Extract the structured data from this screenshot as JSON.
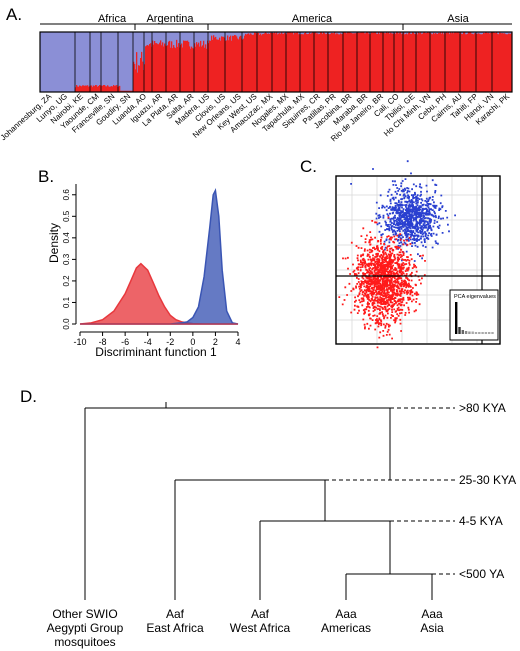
{
  "panels": {
    "A": {
      "label": "A.",
      "regions": [
        "Africa",
        "Argentina",
        "America",
        "Asia"
      ],
      "populations": [
        "Johannesburg, ZA",
        "Lunyo, UG",
        "Nairobi, KE",
        "Yaounde, CM",
        "Franceville, SN",
        "Goudiry, SN",
        "Luanda, AO",
        "Iguazu, AR",
        "La Plata, AR",
        "Salta, AR",
        "Madera, US",
        "Clovis, US",
        "New Orleans, US",
        "Key West, US",
        "Amacuzac, MX",
        "Nogales, MX",
        "Tapachula, MX",
        "Siquirres, CR",
        "Patillas, PR",
        "Jacobina, BR",
        "Maraba, BR",
        "Rio de Janeiro, BR",
        "Cali, CO",
        "Tbilisi, GE",
        "Ho Chi Minh, VN",
        "Cebu, PH",
        "Cairns, AU",
        "Tahiti, FP",
        "Hanoi, VN",
        "Karachi, PK"
      ],
      "colors": {
        "cluster_1": "#8b8fd6",
        "cluster_2": "#ee2222"
      }
    },
    "B": {
      "label": "B.",
      "colors": {
        "red": "#e8383d",
        "blue": "#3a55b4"
      }
    },
    "C": {
      "label": "C.",
      "inset_label": "PCA eigenvalues",
      "colors": {
        "red": "#ff1a1a",
        "blue": "#2a40d0"
      }
    },
    "D": {
      "label": "D.",
      "times": [
        ">80 KYA",
        "25-30 KYA",
        "4-5 KYA",
        "<500 YA"
      ],
      "taxa": [
        {
          "line1": "Other SWIO",
          "line2": "Aegypti Group",
          "line3": "mosquitoes"
        },
        {
          "line1": "Aaf",
          "line2": "East Africa",
          "line3": ""
        },
        {
          "line1": "Aaf",
          "line2": "West Africa",
          "line3": ""
        },
        {
          "line1": "Aaa",
          "line2": "Americas",
          "line3": ""
        },
        {
          "line1": "Aaa",
          "line2": "Asia",
          "line3": ""
        }
      ]
    }
  },
  "chart_data": {
    "type": "area",
    "xlabel": "Discriminant function 1",
    "ylabel": "Density",
    "xlim": [
      -10,
      4
    ],
    "ylim": [
      0,
      0.65
    ],
    "xticks": [
      -10,
      -8,
      -6,
      -4,
      -2,
      0,
      2,
      4
    ],
    "yticks": [
      0.0,
      0.1,
      0.2,
      0.3,
      0.4,
      0.5,
      0.6
    ],
    "series": [
      {
        "x": [
          -10,
          -9,
          -8,
          -7,
          -6,
          -5.5,
          -5,
          -4.6,
          -4,
          -3.5,
          -3,
          -2.5,
          -2,
          -1.5,
          -1,
          -0.5,
          0,
          1,
          2,
          3,
          4
        ],
        "values": [
          0.0,
          0.005,
          0.02,
          0.06,
          0.14,
          0.2,
          0.26,
          0.28,
          0.25,
          0.19,
          0.13,
          0.08,
          0.04,
          0.02,
          0.01,
          0.005,
          0.002,
          0.0,
          0.0,
          0.0,
          0.0
        ]
      },
      {
        "x": [
          -10,
          -2,
          -1,
          -0.5,
          0,
          0.5,
          1,
          1.5,
          1.8,
          2,
          2.3,
          2.6,
          3,
          3.5,
          4
        ],
        "values": [
          0.0,
          0.0,
          0.005,
          0.01,
          0.03,
          0.08,
          0.22,
          0.45,
          0.6,
          0.62,
          0.5,
          0.25,
          0.06,
          0.005,
          0.0
        ]
      }
    ]
  }
}
